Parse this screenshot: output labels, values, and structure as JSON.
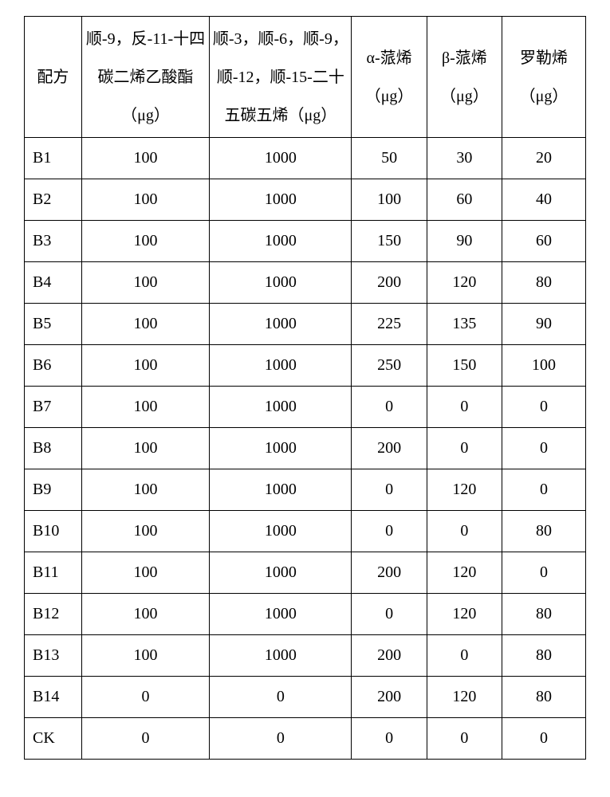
{
  "table": {
    "columns": [
      {
        "label": "配方"
      },
      {
        "label": "顺-9，反-11-十四碳二烯乙酸酯（μg）"
      },
      {
        "label": "顺-3，顺-6，顺-9，顺-12，顺-15-二十五碳五烯（μg）"
      },
      {
        "label": "α-蒎烯（μg）"
      },
      {
        "label": "β-蒎烯（μg）"
      },
      {
        "label": "罗勒烯（μg）"
      }
    ],
    "rows": [
      {
        "c0": "B1",
        "c1": "100",
        "c2": "1000",
        "c3": "50",
        "c4": "30",
        "c5": "20"
      },
      {
        "c0": "B2",
        "c1": "100",
        "c2": "1000",
        "c3": "100",
        "c4": "60",
        "c5": "40"
      },
      {
        "c0": "B3",
        "c1": "100",
        "c2": "1000",
        "c3": "150",
        "c4": "90",
        "c5": "60"
      },
      {
        "c0": "B4",
        "c1": "100",
        "c2": "1000",
        "c3": "200",
        "c4": "120",
        "c5": "80"
      },
      {
        "c0": "B5",
        "c1": "100",
        "c2": "1000",
        "c3": "225",
        "c4": "135",
        "c5": "90"
      },
      {
        "c0": "B6",
        "c1": "100",
        "c2": "1000",
        "c3": "250",
        "c4": "150",
        "c5": "100"
      },
      {
        "c0": "B7",
        "c1": "100",
        "c2": "1000",
        "c3": "0",
        "c4": "0",
        "c5": "0"
      },
      {
        "c0": "B8",
        "c1": "100",
        "c2": "1000",
        "c3": "200",
        "c4": "0",
        "c5": "0"
      },
      {
        "c0": "B9",
        "c1": "100",
        "c2": "1000",
        "c3": "0",
        "c4": "120",
        "c5": "0"
      },
      {
        "c0": "B10",
        "c1": "100",
        "c2": "1000",
        "c3": "0",
        "c4": "0",
        "c5": "80"
      },
      {
        "c0": "B11",
        "c1": "100",
        "c2": "1000",
        "c3": "200",
        "c4": "120",
        "c5": "0"
      },
      {
        "c0": "B12",
        "c1": "100",
        "c2": "1000",
        "c3": "0",
        "c4": "120",
        "c5": "80"
      },
      {
        "c0": "B13",
        "c1": "100",
        "c2": "1000",
        "c3": "200",
        "c4": "0",
        "c5": "80"
      },
      {
        "c0": "B14",
        "c1": "0",
        "c2": "0",
        "c3": "200",
        "c4": "120",
        "c5": "80"
      },
      {
        "c0": "CK",
        "c1": "0",
        "c2": "0",
        "c3": "0",
        "c4": "0",
        "c5": "0"
      }
    ],
    "border_color": "#000000",
    "background_color": "#ffffff",
    "header_fontsize": 20,
    "cell_fontsize": 20,
    "header_row_height": 152,
    "body_row_height": 52
  }
}
